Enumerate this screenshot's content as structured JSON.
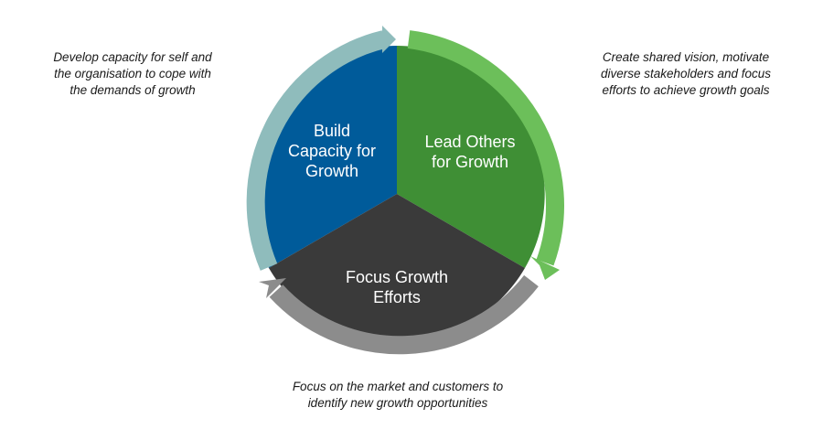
{
  "segments": {
    "build": {
      "label": "Build\nCapacity for\nGrowth",
      "color": "#005b9a",
      "arrow_color": "#8fbcbc",
      "description": "Develop capacity for self and\nthe organisation to cope with\nthe demands of growth"
    },
    "lead": {
      "label": "Lead Others\nfor Growth",
      "color": "#3f8f35",
      "arrow_color": "#6cbf5a",
      "description": "Create shared vision, motivate\ndiverse stakeholders and focus\nefforts to achieve growth goals"
    },
    "focus": {
      "label": "Focus Growth\nEfforts",
      "color": "#3a3a3a",
      "arrow_color": "#8c8c8c",
      "description": "Focus on the market and customers to\nidentify new growth opportunities"
    }
  }
}
